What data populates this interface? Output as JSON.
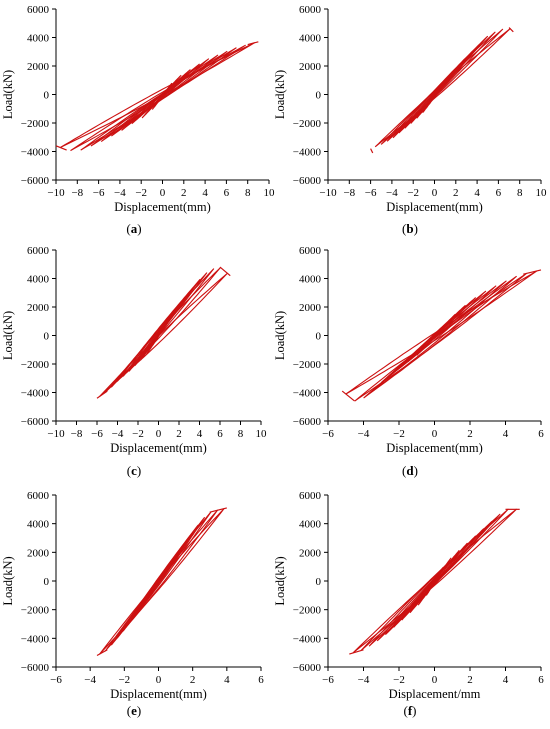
{
  "figure": {
    "captions": [
      "(a)",
      "(b)",
      "(c)",
      "(d)",
      "(e)",
      "(f)"
    ],
    "curve_color": "#cc1111"
  },
  "chart_data": [
    {
      "type": "line",
      "caption": "(a)",
      "xlabel": "Displacement(mm)",
      "ylabel": "Load(kN)",
      "xlim": [
        -10,
        10
      ],
      "ylim": [
        -6000,
        6000
      ],
      "xticks": [
        -10,
        -8,
        -6,
        -4,
        -2,
        0,
        2,
        4,
        6,
        8,
        10
      ],
      "yticks": [
        -6000,
        -4000,
        -2000,
        0,
        2000,
        4000,
        6000
      ],
      "envelope_pos": [
        [
          0,
          0
        ],
        [
          1,
          900
        ],
        [
          2,
          1500
        ],
        [
          3,
          1900
        ],
        [
          4,
          2400
        ],
        [
          5,
          2700
        ],
        [
          6,
          3000
        ],
        [
          7,
          3300
        ],
        [
          8,
          3500
        ],
        [
          9,
          3700
        ]
      ],
      "envelope_neg": [
        [
          0,
          0
        ],
        [
          -1,
          -1100
        ],
        [
          -2,
          -1700
        ],
        [
          -3,
          -2100
        ],
        [
          -4,
          -2600
        ],
        [
          -5,
          -3000
        ],
        [
          -6,
          -3400
        ],
        [
          -7,
          -3700
        ],
        [
          -8,
          -4000
        ],
        [
          -9,
          -3900
        ],
        [
          -10,
          -3600
        ]
      ],
      "grid": false
    },
    {
      "type": "line",
      "caption": "(b)",
      "xlabel": "Displacement(mm)",
      "ylabel": "Load(kN)",
      "xlim": [
        -10,
        10
      ],
      "ylim": [
        -6000,
        6000
      ],
      "xticks": [
        -10,
        -8,
        -6,
        -4,
        -2,
        0,
        2,
        4,
        6,
        8,
        10
      ],
      "yticks": [
        -6000,
        -4000,
        -2000,
        0,
        2000,
        4000,
        6000
      ],
      "envelope_pos": [
        [
          0,
          0
        ],
        [
          1,
          1000
        ],
        [
          2,
          1800
        ],
        [
          3,
          2600
        ],
        [
          4,
          3300
        ],
        [
          5,
          4100
        ],
        [
          6,
          4500
        ],
        [
          7,
          4700
        ],
        [
          7.4,
          4400
        ]
      ],
      "envelope_neg": [
        [
          0,
          0
        ],
        [
          -1,
          -1200
        ],
        [
          -2,
          -1900
        ],
        [
          -3,
          -2500
        ],
        [
          -4,
          -3100
        ],
        [
          -5,
          -3500
        ],
        [
          -6,
          -3800
        ],
        [
          -5.8,
          -4100
        ]
      ],
      "grid": false
    },
    {
      "type": "line",
      "caption": "(c)",
      "xlabel": "Displacement(mm)",
      "ylabel": "Load(kN)",
      "xlim": [
        -10,
        10
      ],
      "ylim": [
        -6000,
        6000
      ],
      "xticks": [
        -10,
        -8,
        -6,
        -4,
        -2,
        0,
        2,
        4,
        6,
        8,
        10
      ],
      "yticks": [
        -6000,
        -4000,
        -2000,
        0,
        2000,
        4000,
        6000
      ],
      "envelope_pos": [
        [
          0,
          0
        ],
        [
          1,
          1200
        ],
        [
          2,
          2100
        ],
        [
          3,
          3000
        ],
        [
          4,
          3900
        ],
        [
          5,
          4600
        ],
        [
          6,
          4800
        ],
        [
          7,
          4200
        ]
      ],
      "envelope_neg": [
        [
          0,
          0
        ],
        [
          -1,
          -1200
        ],
        [
          -2,
          -1900
        ],
        [
          -3,
          -2600
        ],
        [
          -4,
          -3200
        ],
        [
          -5,
          -3900
        ],
        [
          -6,
          -4400
        ]
      ],
      "grid": false
    },
    {
      "type": "line",
      "caption": "(d)",
      "xlabel": "Displacement(mm)",
      "ylabel": "Load(kN)",
      "xlim": [
        -6,
        6
      ],
      "ylim": [
        -6000,
        6000
      ],
      "xticks": [
        -6,
        -4,
        -2,
        0,
        2,
        4,
        6
      ],
      "yticks": [
        -6000,
        -4000,
        -2000,
        0,
        2000,
        4000,
        6000
      ],
      "envelope_pos": [
        [
          0,
          0
        ],
        [
          1,
          1300
        ],
        [
          2,
          2400
        ],
        [
          3,
          3200
        ],
        [
          4,
          3800
        ],
        [
          4.5,
          4100
        ],
        [
          5,
          4300
        ],
        [
          6,
          4600
        ]
      ],
      "envelope_neg": [
        [
          0,
          0
        ],
        [
          -1,
          -1400
        ],
        [
          -2,
          -2300
        ],
        [
          -3,
          -3300
        ],
        [
          -3.8,
          -4300
        ],
        [
          -4.5,
          -4600
        ],
        [
          -5.2,
          -3900
        ]
      ],
      "grid": false
    },
    {
      "type": "line",
      "caption": "(e)",
      "xlabel": "Displacement(mm)",
      "ylabel": "Load(kN)",
      "xlim": [
        -6,
        6
      ],
      "ylim": [
        -6000,
        6000
      ],
      "xticks": [
        -6,
        -4,
        -2,
        0,
        2,
        4,
        6
      ],
      "yticks": [
        -6000,
        -4000,
        -2000,
        0,
        2000,
        4000,
        6000
      ],
      "envelope_pos": [
        [
          0,
          0
        ],
        [
          0.5,
          800
        ],
        [
          1,
          1700
        ],
        [
          1.5,
          2600
        ],
        [
          2,
          3400
        ],
        [
          2.5,
          4200
        ],
        [
          3,
          4800
        ],
        [
          4,
          5100
        ]
      ],
      "envelope_neg": [
        [
          0,
          0
        ],
        [
          -0.5,
          -1000
        ],
        [
          -1,
          -1800
        ],
        [
          -1.5,
          -2600
        ],
        [
          -2,
          -3400
        ],
        [
          -2.5,
          -4100
        ],
        [
          -3,
          -4800
        ],
        [
          -3.6,
          -5200
        ]
      ],
      "grid": false
    },
    {
      "type": "line",
      "caption": "(f)",
      "xlabel": "Displacement/mm",
      "ylabel": "Load(kN)",
      "xlim": [
        -6,
        6
      ],
      "ylim": [
        -6000,
        6000
      ],
      "xticks": [
        -6,
        -4,
        -2,
        0,
        2,
        4,
        6
      ],
      "yticks": [
        -6000,
        -4000,
        -2000,
        0,
        2000,
        4000,
        6000
      ],
      "envelope_pos": [
        [
          0,
          0
        ],
        [
          0.5,
          1000
        ],
        [
          1,
          1700
        ],
        [
          2,
          2800
        ],
        [
          3,
          3900
        ],
        [
          4,
          5000
        ],
        [
          4.8,
          5000
        ]
      ],
      "envelope_neg": [
        [
          0,
          0
        ],
        [
          -0.5,
          -1100
        ],
        [
          -1,
          -1800
        ],
        [
          -2,
          -2900
        ],
        [
          -3,
          -4000
        ],
        [
          -4,
          -4800
        ],
        [
          -4.8,
          -5100
        ]
      ],
      "grid": false
    }
  ]
}
